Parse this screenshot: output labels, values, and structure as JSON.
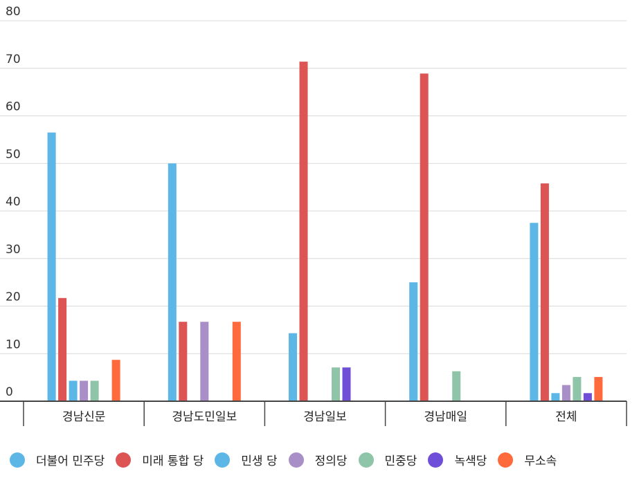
{
  "chart_data": {
    "type": "bar",
    "title": "",
    "xlabel": "",
    "ylabel": "",
    "ylim": [
      0,
      80
    ],
    "yticks": [
      0,
      10,
      20,
      30,
      40,
      50,
      60,
      70,
      80
    ],
    "grid": true,
    "legend_position": "bottom",
    "categories": [
      "경남신문",
      "경남도민일보",
      "경남일보",
      "경남매일",
      "전체"
    ],
    "series": [
      {
        "name": "더불어 민주당",
        "color": "#5cb6e6",
        "values": [
          56.5,
          50.0,
          14.3,
          25.0,
          37.5
        ]
      },
      {
        "name": "미래 통합 당",
        "color": "#dc5454",
        "values": [
          21.7,
          16.7,
          71.4,
          68.9,
          45.8
        ]
      },
      {
        "name": "민생 당",
        "color": "#5cb6e6",
        "values": [
          4.3,
          0,
          0,
          0,
          1.7
        ]
      },
      {
        "name": "정의당",
        "color": "#a98fc8",
        "values": [
          4.3,
          16.7,
          0,
          0,
          3.4
        ]
      },
      {
        "name": "민중당",
        "color": "#8ec4a8",
        "values": [
          4.3,
          0,
          7.1,
          6.3,
          5.1
        ]
      },
      {
        "name": "녹색당",
        "color": "#6f4fd8",
        "values": [
          0,
          0,
          7.1,
          0,
          1.7
        ]
      },
      {
        "name": "무소속",
        "color": "#ff6a3d",
        "values": [
          8.7,
          16.7,
          0,
          0,
          5.1
        ]
      }
    ]
  }
}
